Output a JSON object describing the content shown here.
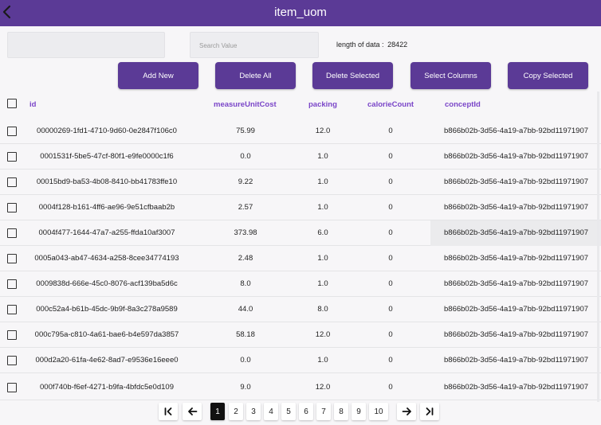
{
  "app": {
    "title": "item_uom"
  },
  "search": {
    "placeholder": "Search Value"
  },
  "info": {
    "length_label": "length of data :",
    "length_value": "28422"
  },
  "toolbar": {
    "add_new": "Add New",
    "delete_all": "Delete All",
    "delete_selected": "Delete Selected",
    "select_columns": "Select Columns",
    "copy_selected": "Copy Selected"
  },
  "table": {
    "columns": [
      "id",
      "measureUnitCost",
      "packing",
      "calorieCount",
      "conceptId"
    ],
    "rows": [
      [
        "00000269-1fd1-4710-9d60-0e2847f106c0",
        "75.99",
        "12.0",
        "0",
        "b866b02b-3d56-4a19-a7bb-92bd11971907"
      ],
      [
        "0001531f-5be5-47cf-80f1-e9fe0000c1f6",
        "0.0",
        "1.0",
        "0",
        "b866b02b-3d56-4a19-a7bb-92bd11971907"
      ],
      [
        "00015bd9-ba53-4b08-8410-bb41783ffe10",
        "9.22",
        "1.0",
        "0",
        "b866b02b-3d56-4a19-a7bb-92bd11971907"
      ],
      [
        "0004f128-b161-4ff6-ae96-9e51cfbaab2b",
        "2.57",
        "1.0",
        "0",
        "b866b02b-3d56-4a19-a7bb-92bd11971907"
      ],
      [
        "0004f477-1644-47a7-a255-ffda10af3007",
        "373.98",
        "6.0",
        "0",
        "b866b02b-3d56-4a19-a7bb-92bd11971907"
      ],
      [
        "0005a043-ab47-4634-a258-8cee34774193",
        "2.48",
        "1.0",
        "0",
        "b866b02b-3d56-4a19-a7bb-92bd11971907"
      ],
      [
        "0009838d-666e-45c0-8076-acf139ba5d6c",
        "8.0",
        "1.0",
        "0",
        "b866b02b-3d56-4a19-a7bb-92bd11971907"
      ],
      [
        "000c52a4-b61b-45dc-9b9f-8a3c278a9589",
        "44.0",
        "8.0",
        "0",
        "b866b02b-3d56-4a19-a7bb-92bd11971907"
      ],
      [
        "000c795a-c810-4a61-bae6-b4e597da3857",
        "58.18",
        "12.0",
        "0",
        "b866b02b-3d56-4a19-a7bb-92bd11971907"
      ],
      [
        "000d2a20-61fa-4e62-8ad7-e9536e16eee0",
        "0.0",
        "1.0",
        "0",
        "b866b02b-3d56-4a19-a7bb-92bd11971907"
      ],
      [
        "000f740b-f6ef-4271-b9fa-4bfdc5e0d109",
        "9.0",
        "12.0",
        "0",
        "b866b02b-3d56-4a19-a7bb-92bd11971907"
      ]
    ]
  },
  "pagination": {
    "pages": [
      "1",
      "2",
      "3",
      "4",
      "5",
      "6",
      "7",
      "8",
      "9",
      "10"
    ],
    "current": "1"
  },
  "icons": {
    "back": "chevron-left-icon",
    "first": "first-page-icon",
    "prev": "arrow-left-icon",
    "next": "arrow-right-icon",
    "last": "last-page-icon"
  },
  "colors": {
    "primary": "#5b3a96",
    "header_text": "#7a45c8"
  }
}
